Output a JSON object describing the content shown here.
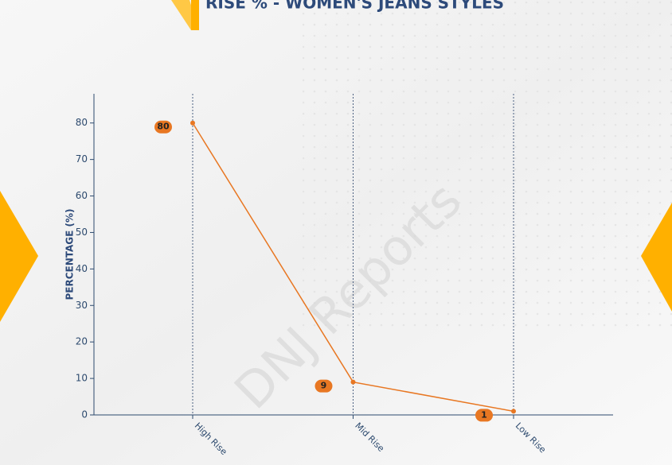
{
  "chart_data": {
    "type": "line",
    "title": "RISE % - WOMEN'S JEANS STYLES",
    "watermark": "DNJ Reports",
    "y_label": "PERCENTAGE (%)",
    "categories": [
      "High Rise",
      "Mid Rise",
      "Low Rise"
    ],
    "values": [
      80,
      9,
      1
    ],
    "color": "#e87722",
    "ylim": [
      0,
      88
    ],
    "yticks": [
      0,
      10,
      20,
      30,
      40,
      50,
      60,
      70,
      80
    ],
    "x_grid": true
  }
}
